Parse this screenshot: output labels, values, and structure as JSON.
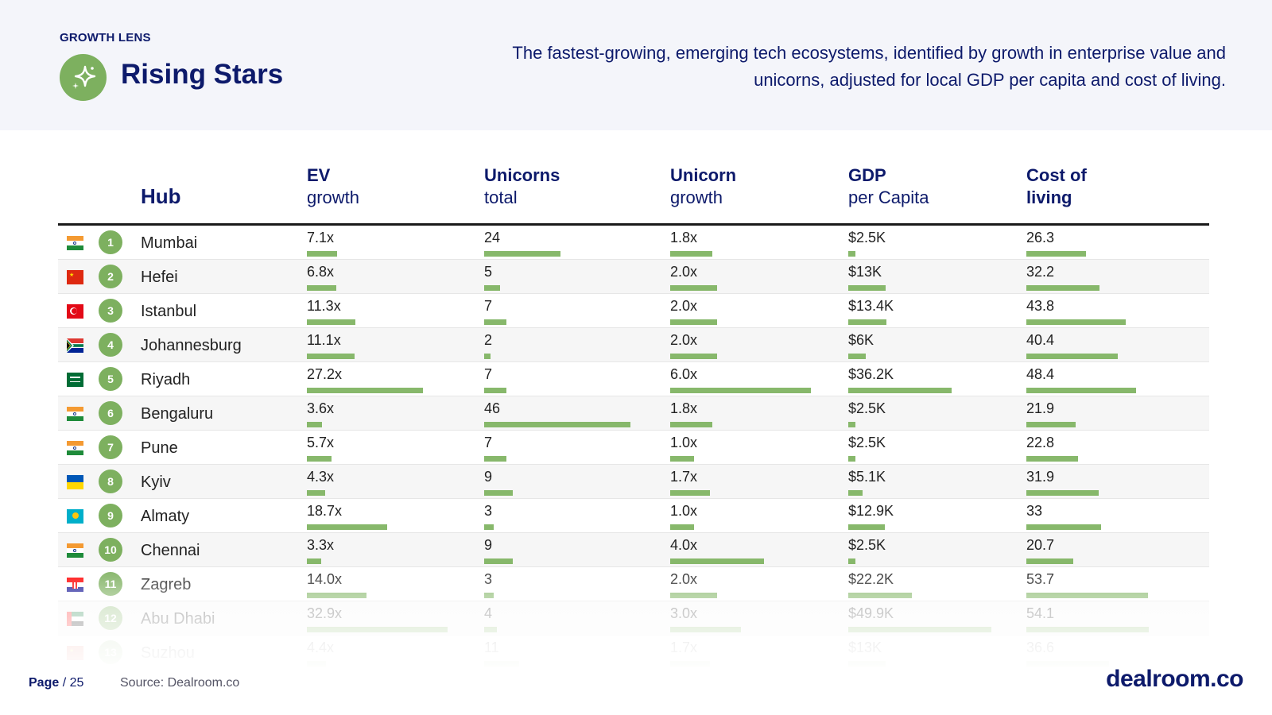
{
  "header": {
    "eyebrow": "GROWTH LENS",
    "title": "Rising Stars",
    "description": "The fastest-growing, emerging tech ecosystems, identified by growth in enterprise value and unicorns, adjusted for local GDP per capita and cost of living.",
    "badge_icon": "sparkle-icon"
  },
  "table": {
    "columns": [
      {
        "key": "hub",
        "line1": "Hub",
        "line2": ""
      },
      {
        "key": "ev",
        "line1": "EV",
        "line2": "growth"
      },
      {
        "key": "unicorns",
        "line1": "Unicorns",
        "line2": "total"
      },
      {
        "key": "ugrowth",
        "line1": "Unicorn",
        "line2": "growth"
      },
      {
        "key": "gdp",
        "line1": "GDP",
        "line2": "per Capita"
      },
      {
        "key": "col",
        "line1": "Cost of",
        "line2": "living"
      }
    ],
    "rows": [
      {
        "rank": "1",
        "hub": "Mumbai",
        "flag": "india",
        "ev": "7.1x",
        "unicorns": "24",
        "ugrowth": "1.8x",
        "gdp": "$2.5K",
        "col": "26.3",
        "ev_v": 7.1,
        "unicorns_v": 24,
        "ugrowth_v": 1.8,
        "gdp_v": 2.5,
        "col_v": 26.3
      },
      {
        "rank": "2",
        "hub": "Hefei",
        "flag": "china",
        "ev": "6.8x",
        "unicorns": "5",
        "ugrowth": "2.0x",
        "gdp": "$13K",
        "col": "32.2",
        "ev_v": 6.8,
        "unicorns_v": 5,
        "ugrowth_v": 2.0,
        "gdp_v": 13,
        "col_v": 32.2
      },
      {
        "rank": "3",
        "hub": "Istanbul",
        "flag": "turkey",
        "ev": "11.3x",
        "unicorns": "7",
        "ugrowth": "2.0x",
        "gdp": "$13.4K",
        "col": "43.8",
        "ev_v": 11.3,
        "unicorns_v": 7,
        "ugrowth_v": 2.0,
        "gdp_v": 13.4,
        "col_v": 43.8
      },
      {
        "rank": "4",
        "hub": "Johannesburg",
        "flag": "south-africa",
        "ev": "11.1x",
        "unicorns": "2",
        "ugrowth": "2.0x",
        "gdp": "$6K",
        "col": "40.4",
        "ev_v": 11.1,
        "unicorns_v": 2,
        "ugrowth_v": 2.0,
        "gdp_v": 6,
        "col_v": 40.4
      },
      {
        "rank": "5",
        "hub": "Riyadh",
        "flag": "saudi-arabia",
        "ev": "27.2x",
        "unicorns": "7",
        "ugrowth": "6.0x",
        "gdp": "$36.2K",
        "col": "48.4",
        "ev_v": 27.2,
        "unicorns_v": 7,
        "ugrowth_v": 6.0,
        "gdp_v": 36.2,
        "col_v": 48.4
      },
      {
        "rank": "6",
        "hub": "Bengaluru",
        "flag": "india",
        "ev": "3.6x",
        "unicorns": "46",
        "ugrowth": "1.8x",
        "gdp": "$2.5K",
        "col": "21.9",
        "ev_v": 3.6,
        "unicorns_v": 46,
        "ugrowth_v": 1.8,
        "gdp_v": 2.5,
        "col_v": 21.9
      },
      {
        "rank": "7",
        "hub": "Pune",
        "flag": "india",
        "ev": "5.7x",
        "unicorns": "7",
        "ugrowth": "1.0x",
        "gdp": "$2.5K",
        "col": "22.8",
        "ev_v": 5.7,
        "unicorns_v": 7,
        "ugrowth_v": 1.0,
        "gdp_v": 2.5,
        "col_v": 22.8
      },
      {
        "rank": "8",
        "hub": "Kyiv",
        "flag": "ukraine",
        "ev": "4.3x",
        "unicorns": "9",
        "ugrowth": "1.7x",
        "gdp": "$5.1K",
        "col": "31.9",
        "ev_v": 4.3,
        "unicorns_v": 9,
        "ugrowth_v": 1.7,
        "gdp_v": 5.1,
        "col_v": 31.9
      },
      {
        "rank": "9",
        "hub": "Almaty",
        "flag": "kazakhstan",
        "ev": "18.7x",
        "unicorns": "3",
        "ugrowth": "1.0x",
        "gdp": "$12.9K",
        "col": "33",
        "ev_v": 18.7,
        "unicorns_v": 3,
        "ugrowth_v": 1.0,
        "gdp_v": 12.9,
        "col_v": 33
      },
      {
        "rank": "10",
        "hub": "Chennai",
        "flag": "india",
        "ev": "3.3x",
        "unicorns": "9",
        "ugrowth": "4.0x",
        "gdp": "$2.5K",
        "col": "20.7",
        "ev_v": 3.3,
        "unicorns_v": 9,
        "ugrowth_v": 4.0,
        "gdp_v": 2.5,
        "col_v": 20.7
      },
      {
        "rank": "11",
        "hub": "Zagreb",
        "flag": "croatia",
        "ev": "14.0x",
        "unicorns": "3",
        "ugrowth": "2.0x",
        "gdp": "$22.2K",
        "col": "53.7",
        "ev_v": 14.0,
        "unicorns_v": 3,
        "ugrowth_v": 2.0,
        "gdp_v": 22.2,
        "col_v": 53.7
      },
      {
        "rank": "12",
        "hub": "Abu Dhabi",
        "flag": "uae",
        "ev": "32.9x",
        "unicorns": "4",
        "ugrowth": "3.0x",
        "gdp": "$49.9K",
        "col": "54.1",
        "ev_v": 32.9,
        "unicorns_v": 4,
        "ugrowth_v": 3.0,
        "gdp_v": 49.9,
        "col_v": 54.1
      },
      {
        "rank": "13",
        "hub": "Suzhou",
        "flag": "china",
        "ev": "4.4x",
        "unicorns": "11",
        "ugrowth": "1.7x",
        "gdp": "$13K",
        "col": "36.6",
        "ev_v": 4.4,
        "unicorns_v": 11,
        "ugrowth_v": 1.7,
        "gdp_v": 13,
        "col_v": 36.6
      }
    ]
  },
  "footer": {
    "page_bold": "Page",
    "page_rest": " / 25",
    "source": "Source: Dealroom.co",
    "brand": "dealroom.co"
  },
  "colors": {
    "navy": "#0d1a6b",
    "bar_green": "#87b86b",
    "rank_green": "#7db05f"
  }
}
